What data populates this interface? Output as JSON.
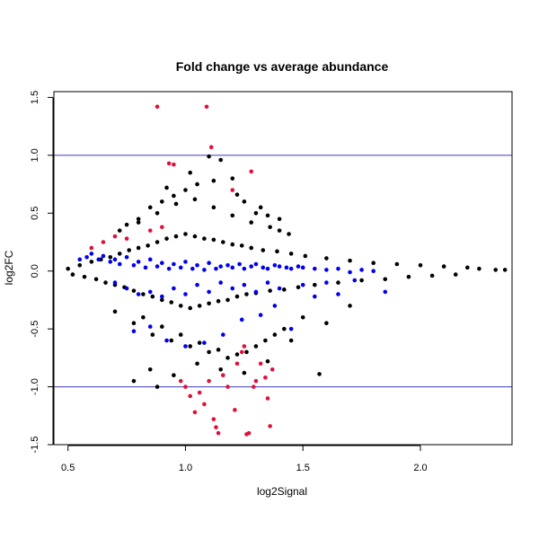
{
  "chart_data": {
    "type": "scatter",
    "title": "Fold change vs average abundance",
    "xlabel": "log2Signal",
    "ylabel": "log2FC",
    "xlim": [
      0.44,
      2.39
    ],
    "ylim": [
      -1.5,
      1.55
    ],
    "x_ticks": [
      {
        "value": 0.5,
        "label": "0.5"
      },
      {
        "value": 1.0,
        "label": "1.0"
      },
      {
        "value": 1.5,
        "label": "1.5"
      },
      {
        "value": 2.0,
        "label": "2.0"
      }
    ],
    "y_ticks": [
      {
        "value": -1.5,
        "label": "-1.5"
      },
      {
        "value": -1.0,
        "label": "-1.0"
      },
      {
        "value": -0.5,
        "label": "-0.5"
      },
      {
        "value": 0.0,
        "label": "0.0"
      },
      {
        "value": 0.5,
        "label": "0.5"
      },
      {
        "value": 1.0,
        "label": "1.0"
      },
      {
        "value": 1.5,
        "label": "1.5"
      }
    ],
    "reference_lines": [
      {
        "axis": "y",
        "value": 1.0,
        "color": "#3b3bb8"
      },
      {
        "axis": "y",
        "value": -1.0,
        "color": "#3b3bb8"
      }
    ],
    "grid": false,
    "legend": "none",
    "series": [
      {
        "color": "#000000",
        "x": [
          0.5,
          0.52,
          0.55,
          0.57,
          0.6,
          0.62,
          0.64,
          0.66,
          0.68,
          0.7,
          0.72,
          0.74,
          0.76,
          0.78,
          0.8,
          0.82,
          0.84,
          0.86,
          0.88,
          0.9,
          0.92,
          0.94,
          0.96,
          0.98,
          1.0,
          1.02,
          1.04,
          1.06,
          1.08,
          1.1,
          1.12,
          1.14,
          1.16,
          1.18,
          1.2,
          1.22,
          1.24,
          1.26,
          1.28,
          1.3,
          1.33,
          1.36,
          1.39,
          1.42,
          1.45,
          1.48,
          1.51,
          1.55,
          1.6,
          1.65,
          1.7,
          1.75,
          1.8,
          1.85,
          1.9,
          1.95,
          2.0,
          2.05,
          2.1,
          2.15,
          2.2,
          2.25,
          2.32,
          2.36,
          0.75,
          0.8,
          0.85,
          0.9,
          0.95,
          1.0,
          1.05,
          1.1,
          1.15,
          1.2,
          1.25,
          1.3,
          1.35,
          1.4,
          0.7,
          0.78,
          0.86,
          0.94,
          1.02,
          1.1,
          1.18,
          1.26,
          1.34,
          1.42,
          1.5,
          0.72,
          0.8,
          0.88,
          0.96,
          1.04,
          1.12,
          1.2,
          1.28,
          1.36,
          1.44,
          0.82,
          0.9,
          0.98,
          1.06,
          1.14,
          1.22,
          1.3,
          1.38,
          0.85,
          0.95,
          1.05,
          1.15,
          1.25,
          1.35,
          0.92,
          1.02,
          1.12,
          1.22,
          1.32,
          1.4,
          1.57,
          0.78,
          0.88,
          1.45,
          1.6,
          1.7
        ],
        "y": [
          0.02,
          -0.03,
          0.05,
          -0.05,
          0.08,
          -0.07,
          0.1,
          -0.1,
          0.12,
          -0.12,
          0.15,
          -0.14,
          0.18,
          -0.17,
          0.2,
          -0.2,
          0.22,
          -0.22,
          0.25,
          -0.25,
          0.28,
          -0.27,
          0.3,
          -0.3,
          0.32,
          -0.32,
          0.3,
          -0.3,
          0.28,
          -0.28,
          0.27,
          -0.26,
          0.25,
          -0.25,
          0.23,
          -0.22,
          0.22,
          -0.2,
          0.2,
          -0.19,
          0.18,
          -0.17,
          0.17,
          -0.16,
          0.15,
          -0.14,
          0.13,
          -0.12,
          0.11,
          -0.1,
          0.09,
          -0.08,
          0.07,
          -0.07,
          0.06,
          -0.05,
          0.05,
          -0.04,
          0.04,
          -0.03,
          0.03,
          0.02,
          0.01,
          0.01,
          0.4,
          0.45,
          0.55,
          0.6,
          0.65,
          0.7,
          0.75,
          0.99,
          0.96,
          0.8,
          0.6,
          0.5,
          0.48,
          0.35,
          -0.35,
          -0.45,
          -0.55,
          -0.6,
          -0.65,
          -0.7,
          -0.75,
          -0.7,
          -0.6,
          -0.5,
          -0.4,
          0.35,
          0.42,
          0.5,
          0.58,
          0.62,
          0.55,
          0.48,
          0.42,
          0.38,
          0.32,
          -0.4,
          -0.48,
          -0.55,
          -0.62,
          -0.68,
          -0.72,
          -0.65,
          -0.55,
          -0.85,
          -0.9,
          -0.8,
          -0.85,
          -0.88,
          -0.78,
          0.72,
          0.85,
          0.78,
          0.66,
          0.55,
          0.45,
          -0.89,
          -0.95,
          -1.0,
          -0.6,
          -0.45,
          -0.3
        ]
      },
      {
        "color": "#0000ee",
        "x": [
          0.55,
          0.58,
          0.6,
          0.63,
          0.65,
          0.68,
          0.7,
          0.72,
          0.75,
          0.78,
          0.8,
          0.83,
          0.85,
          0.88,
          0.9,
          0.93,
          0.95,
          0.98,
          1.0,
          1.03,
          1.05,
          1.08,
          1.1,
          1.13,
          1.15,
          1.18,
          1.2,
          1.23,
          1.25,
          1.28,
          1.3,
          1.33,
          1.35,
          1.38,
          1.4,
          1.43,
          1.45,
          1.48,
          1.5,
          1.55,
          1.6,
          1.65,
          1.7,
          1.75,
          1.8,
          0.7,
          0.75,
          0.8,
          0.85,
          0.9,
          0.95,
          1.0,
          1.05,
          1.1,
          1.15,
          1.2,
          1.25,
          1.3,
          1.35,
          1.4,
          1.5,
          1.6,
          1.72,
          1.85,
          0.78,
          0.85,
          0.92,
          1.0,
          1.08,
          1.16,
          1.24,
          1.32,
          1.38,
          1.45,
          1.55,
          1.65
        ],
        "y": [
          0.1,
          0.12,
          0.15,
          0.1,
          0.13,
          0.08,
          0.1,
          0.06,
          0.12,
          0.05,
          0.08,
          0.03,
          0.1,
          0.04,
          0.07,
          0.02,
          0.06,
          0.03,
          0.08,
          0.02,
          0.05,
          0.01,
          0.07,
          0.02,
          0.04,
          0.05,
          0.03,
          0.06,
          0.02,
          0.04,
          0.06,
          0.03,
          0.02,
          0.05,
          0.04,
          0.03,
          0.02,
          0.04,
          0.03,
          0.02,
          0.01,
          0.02,
          -0.01,
          0.01,
          0.0,
          -0.1,
          -0.15,
          -0.2,
          -0.18,
          -0.22,
          -0.15,
          -0.2,
          -0.12,
          -0.18,
          -0.1,
          -0.15,
          -0.12,
          -0.18,
          -0.1,
          -0.15,
          -0.12,
          -0.1,
          -0.08,
          -0.18,
          -0.52,
          -0.48,
          -0.6,
          -0.65,
          -0.62,
          -0.55,
          -0.42,
          -0.38,
          -0.3,
          -0.5,
          -0.22,
          -0.2
        ]
      },
      {
        "color": "#e0103a",
        "x": [
          0.88,
          0.93,
          0.95,
          0.98,
          1.0,
          1.02,
          1.04,
          1.06,
          1.08,
          1.09,
          1.1,
          1.11,
          1.12,
          1.13,
          1.14,
          1.16,
          1.18,
          1.2,
          1.21,
          1.22,
          1.24,
          1.25,
          1.26,
          1.27,
          1.28,
          1.29,
          1.3,
          1.32,
          1.34,
          1.35,
          1.36,
          1.37,
          0.6,
          0.65,
          0.7,
          0.75,
          0.85,
          0.9
        ],
        "y": [
          1.42,
          0.93,
          0.92,
          -0.95,
          -1.0,
          -1.08,
          -1.22,
          -1.05,
          -1.15,
          1.42,
          -0.95,
          1.07,
          -1.28,
          -1.35,
          -1.4,
          -0.9,
          -1.0,
          0.7,
          -1.2,
          -0.8,
          -0.7,
          -0.65,
          -1.41,
          -1.4,
          0.86,
          -1.0,
          -0.95,
          -0.8,
          -0.92,
          -1.1,
          -1.34,
          -0.85,
          0.2,
          0.25,
          0.3,
          0.28,
          0.35,
          0.38
        ]
      }
    ]
  }
}
